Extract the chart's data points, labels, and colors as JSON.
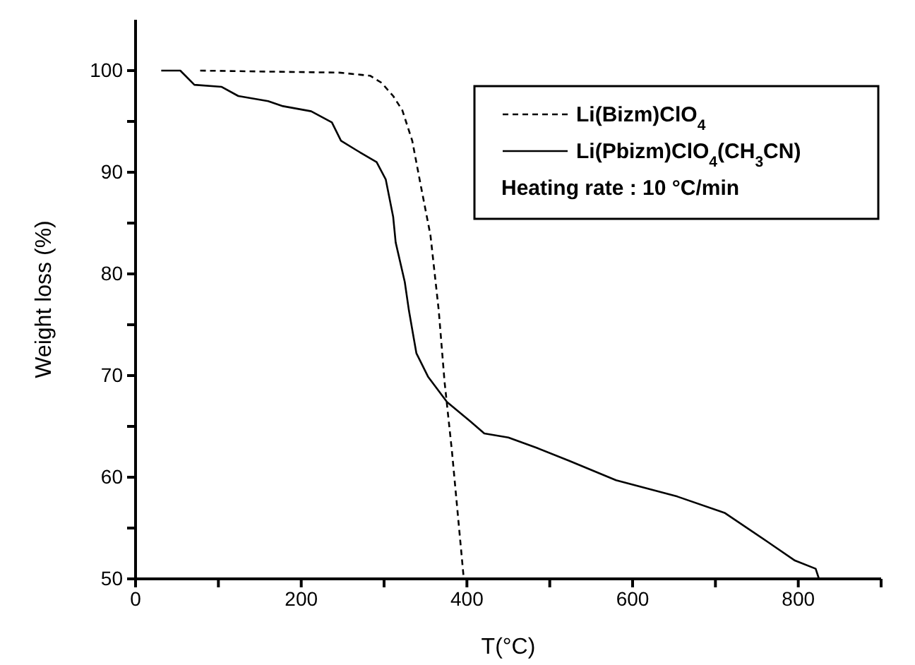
{
  "chart_data": {
    "type": "line",
    "xlabel": "T(°C)",
    "ylabel": "Weight loss (%)",
    "xlim": [
      0,
      900
    ],
    "ylim": [
      50,
      105
    ],
    "xticks": [
      0,
      {
        "value": 100,
        "label": null
      },
      200,
      {
        "value": 300,
        "label": null
      },
      400,
      {
        "value": 500,
        "label": null
      },
      600,
      {
        "value": 700,
        "label": null
      },
      800,
      {
        "value": 900,
        "label": null
      }
    ],
    "yticks": [
      50,
      {
        "value": 55,
        "label": null
      },
      60,
      {
        "value": 65,
        "label": null
      },
      70,
      {
        "value": 75,
        "label": null
      },
      80,
      {
        "value": 85,
        "label": null
      },
      90,
      {
        "value": 95,
        "label": null
      },
      100
    ],
    "legend": "top right",
    "grid": false,
    "marker": "none",
    "annotations": [
      "Heating rate : 10 °C/min"
    ],
    "series": [
      {
        "name": "Li(Bizm)ClO$_{4}$",
        "color": "#000000",
        "line_style": "dashed",
        "x": [
          78,
          246,
          283,
          297,
          311,
          322,
          334,
          345,
          356,
          366,
          373,
          382,
          396
        ],
        "values": [
          100,
          99.8,
          99.5,
          98.8,
          97.5,
          96.1,
          93.1,
          88.4,
          83.8,
          76.4,
          69.4,
          62.5,
          50.2
        ]
      },
      {
        "name": "Li(Pbizm)ClO$_{4}$(CH$_{3}$CN)",
        "color": "#000000",
        "line_style": "solid",
        "x": [
          31,
          54,
          71,
          104,
          124,
          160,
          178,
          212,
          237,
          248,
          268,
          291,
          302,
          311,
          314,
          325,
          330,
          336,
          339,
          353,
          376,
          404,
          421,
          450,
          484,
          524,
          580,
          654,
          711,
          762,
          796,
          821,
          825
        ],
        "values": [
          100,
          100,
          98.6,
          98.4,
          97.5,
          97.0,
          96.5,
          96.0,
          94.9,
          93.1,
          92.1,
          91.0,
          89.3,
          85.6,
          83.1,
          79.2,
          76.4,
          73.6,
          72.2,
          69.9,
          67.4,
          65.5,
          64.3,
          63.9,
          62.9,
          61.6,
          59.7,
          58.1,
          56.5,
          53.7,
          51.8,
          51.0,
          50
        ]
      }
    ]
  }
}
